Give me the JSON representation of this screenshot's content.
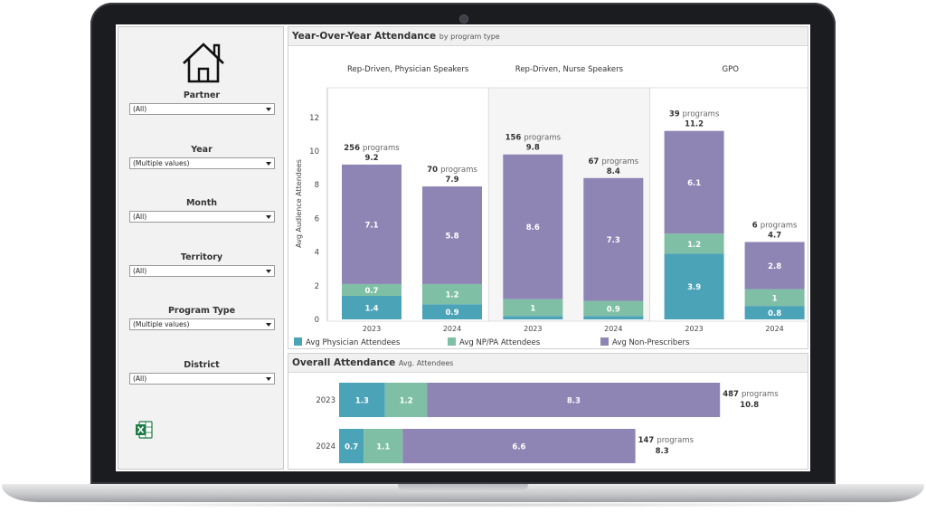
{
  "sidebar": {
    "filters": [
      {
        "label": "Partner",
        "value": "(All)"
      },
      {
        "label": "Year",
        "value": "(Multiple values)"
      },
      {
        "label": "Month",
        "value": "(All)"
      },
      {
        "label": "Territory",
        "value": "(All)"
      },
      {
        "label": "Program Type",
        "value": "(Multiple values)"
      },
      {
        "label": "District",
        "value": "(All)"
      }
    ]
  },
  "yoy": {
    "title": "Year-Over-Year Attendance",
    "subtitle": "by program type"
  },
  "overall": {
    "title": "Overall Attendance",
    "subtitle": "Avg. Attendees"
  },
  "colors": {
    "physician": "#4ba3b8",
    "nppa": "#7fbfa6",
    "nonprescriber": "#8f85b5"
  },
  "chart_data": [
    {
      "type": "bar",
      "stacked": true,
      "title": "Year-Over-Year Attendance",
      "subtitle": "by program type",
      "ylabel": "Avg Audience Attendees",
      "ylim": [
        0,
        13
      ],
      "yticks": [
        0,
        2,
        4,
        6,
        8,
        10,
        12
      ],
      "legend_position": "bottom",
      "legend": [
        "Avg Physician Attendees",
        "Avg NP/PA Attendees",
        "Avg Non-Prescribers"
      ],
      "panels": [
        {
          "name": "Rep-Driven, Physician Speakers",
          "bars": [
            {
              "year": "2023",
              "physician": 1.4,
              "nppa": 0.7,
              "nonprescriber": 7.1,
              "total": "9.2",
              "programs": "256",
              "programs_suffix": "programs"
            },
            {
              "year": "2024",
              "physician": 0.9,
              "nppa": 1.2,
              "nonprescriber": 5.8,
              "total": "7.9",
              "programs": "70",
              "programs_suffix": "programs"
            }
          ]
        },
        {
          "name": "Rep-Driven, Nurse Speakers",
          "bars": [
            {
              "year": "2023",
              "physician": 0.2,
              "nppa": 1.0,
              "nonprescriber": 8.6,
              "total": "9.8",
              "programs": "156",
              "programs_suffix": "programs"
            },
            {
              "year": "2024",
              "physician": 0.2,
              "nppa": 0.9,
              "nonprescriber": 7.3,
              "total": "8.4",
              "programs": "67",
              "programs_suffix": "programs"
            }
          ]
        },
        {
          "name": "GPO",
          "bars": [
            {
              "year": "2023",
              "physician": 3.9,
              "nppa": 1.2,
              "nonprescriber": 6.1,
              "total": "11.2",
              "programs": "39",
              "programs_suffix": "programs"
            },
            {
              "year": "2024",
              "physician": 0.8,
              "nppa": 1.0,
              "nonprescriber": 2.8,
              "total": "4.7",
              "programs": "6",
              "programs_suffix": "programs"
            }
          ]
        }
      ]
    },
    {
      "type": "bar",
      "orientation": "horizontal",
      "stacked": true,
      "title": "Overall Attendance",
      "subtitle": "Avg. Attendees",
      "xlim": [
        0,
        11.7
      ],
      "rows": [
        {
          "year": "2023",
          "physician": 1.3,
          "nppa": 1.2,
          "nonprescriber": 8.3,
          "total": "10.8",
          "programs": "487",
          "programs_suffix": "programs"
        },
        {
          "year": "2024",
          "physician": 0.7,
          "nppa": 1.1,
          "nonprescriber": 6.6,
          "total": "8.3",
          "programs": "147",
          "programs_suffix": "programs"
        }
      ]
    }
  ]
}
